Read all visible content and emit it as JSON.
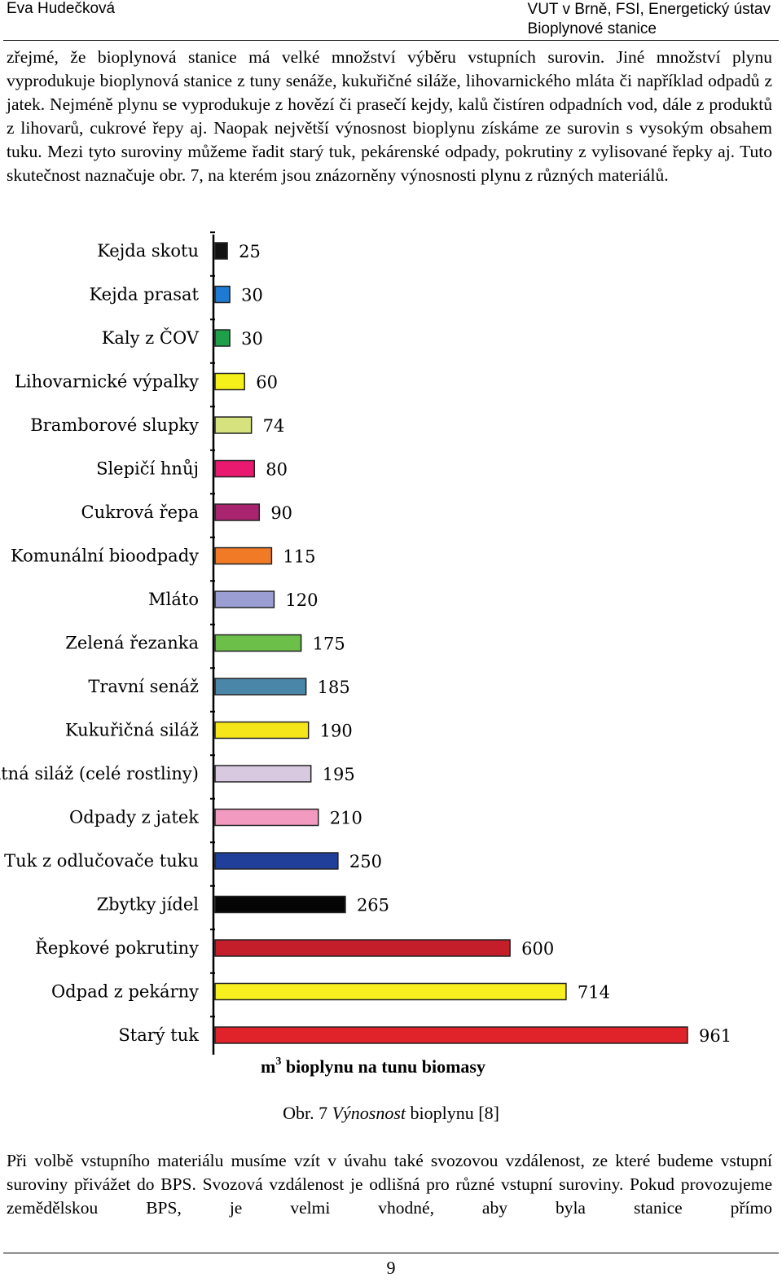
{
  "header": {
    "author": "Eva Hudečková",
    "institution": "VUT v Brně, FSI, Energetický ústav",
    "topic": "Bioplynové stanice"
  },
  "paragraph1": "zřejmé, že bioplynová stanice má velké množství výběru vstupních surovin. Jiné množství plynu vyprodukuje bioplynová stanice z tuny senáže, kukuřičné siláže, lihovarnického mláta či například odpadů z jatek. Nejméně plynu se vyprodukuje z hovězí či prasečí kejdy, kalů čistíren odpadních vod, dále z produktů z lihovarů, cukrové řepy aj. Naopak největší výnosnost bioplynu získáme ze surovin s vysokým obsahem tuku. Mezi tyto suroviny můžeme řadit starý tuk, pekárenské odpady, pokrutiny z vylisované řepky aj. Tuto skutečnost naznačuje obr. 7, na kterém jsou znázorněny výnosnosti plynu z různých materiálů.",
  "chart_data": {
    "type": "bar",
    "orientation": "horizontal",
    "categories": [
      "Kejda skotu",
      "Kejda prasat",
      "Kaly z ČOV",
      "Lihovarnické výpalky",
      "Bramborové slupky",
      "Slepičí hnůj",
      "Cukrová řepa",
      "Komunální bioodpady",
      "Mláto",
      "Zelená řezanka",
      "Travní senáž",
      "Kukuřičná siláž",
      "Žitná siláž (celé rostliny)",
      "Odpady z jatek",
      "Tuk z odlučovače tuku",
      "Zbytky jídel",
      "Řepkové pokrutiny",
      "Odpad z pekárny",
      "Starý tuk"
    ],
    "values": [
      25,
      30,
      30,
      60,
      74,
      80,
      90,
      115,
      120,
      175,
      185,
      190,
      195,
      210,
      250,
      265,
      600,
      714,
      961
    ],
    "value_labels": [
      "25",
      "30",
      "30",
      "60",
      "74",
      "80",
      "90",
      "115",
      "120",
      "175",
      "185",
      "190",
      "195",
      "210",
      "250",
      "265",
      "600",
      "714",
      "961"
    ],
    "colors": [
      "#111111",
      "#1e7ad2",
      "#1ea04b",
      "#f5ef1a",
      "#d5e27e",
      "#e8196e",
      "#a8246e",
      "#f07a25",
      "#9a9ed2",
      "#6cc04a",
      "#4a86a8",
      "#f5e61a",
      "#d8c8e0",
      "#f29ac0",
      "#1f3f9a",
      "#050505",
      "#c41e2a",
      "#f7f01e",
      "#e0222a"
    ],
    "xlabel_main": "m",
    "xlabel_sup": "3",
    "xlabel_rest": " bioplynu na tunu biomasy",
    "xlim": [
      0,
      961
    ]
  },
  "caption": {
    "prefix": "Obr. 7 ",
    "italic": "Výnosnost",
    "suffix": " bioplynu [8]"
  },
  "paragraph2": "Při volbě vstupního materiálu musíme vzít v úvahu také svozovou vzdálenost, ze které budeme vstupní suroviny přivážet do BPS. Svozová vzdálenost je odlišná pro různé vstupní suroviny. Pokud provozujeme zemědělskou BPS, je velmi vhodné, aby byla stanice přímo",
  "page_number": "9"
}
